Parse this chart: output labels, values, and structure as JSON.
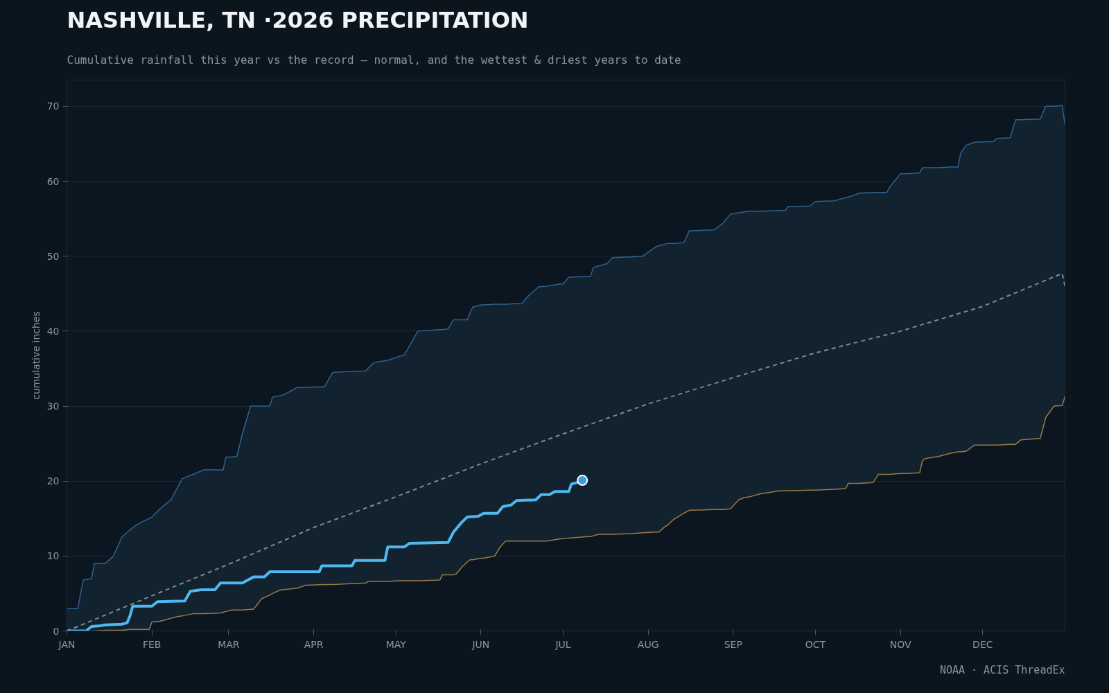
{
  "chart_data": {
    "type": "line",
    "title": "NASHVILLE, TN ·2026 PRECIPITATION",
    "subtitle": "Cumulative rainfall this year vs the record — normal, and the wettest & driest years to date",
    "ylabel": "cumulative inches",
    "annotations": [
      "NOAA · ACIS ThreadEx"
    ],
    "xlim": [
      "2026-01-01",
      "2026-12-31"
    ],
    "xticks": [
      {
        "value": "2026-01-01",
        "label": "JAN"
      },
      {
        "value": "2026-02-01",
        "label": "FEB"
      },
      {
        "value": "2026-03-01",
        "label": "MAR"
      },
      {
        "value": "2026-04-01",
        "label": "APR"
      },
      {
        "value": "2026-05-01",
        "label": "MAY"
      },
      {
        "value": "2026-06-01",
        "label": "JUN"
      },
      {
        "value": "2026-07-01",
        "label": "JUL"
      },
      {
        "value": "2026-08-01",
        "label": "AUG"
      },
      {
        "value": "2026-09-01",
        "label": "SEP"
      },
      {
        "value": "2026-10-01",
        "label": "OCT"
      },
      {
        "value": "2026-11-01",
        "label": "NOV"
      },
      {
        "value": "2026-12-01",
        "label": "DEC"
      }
    ],
    "ylim": [
      0,
      73.5
    ],
    "yticks": [
      0,
      10,
      20,
      30,
      40,
      50,
      60,
      70
    ],
    "grid": "y",
    "series": [
      {
        "color": "#2f6290",
        "x": [
          "2026-01-01",
          "2026-01-05",
          "2026-01-06",
          "2026-01-07",
          "2026-01-10",
          "2026-01-11",
          "2026-01-15",
          "2026-01-18",
          "2026-01-21",
          "2026-01-24",
          "2026-01-27",
          "2026-01-31",
          "2026-02-01",
          "2026-02-04",
          "2026-02-06",
          "2026-02-08",
          "2026-02-10",
          "2026-02-12",
          "2026-02-16",
          "2026-02-20",
          "2026-02-26",
          "2026-02-27",
          "2026-02-28",
          "2026-03-02",
          "2026-03-04",
          "2026-03-06",
          "2026-03-09",
          "2026-03-10",
          "2026-03-11",
          "2026-03-13",
          "2026-03-16",
          "2026-03-17",
          "2026-03-20",
          "2026-03-21",
          "2026-03-26",
          "2026-03-29",
          "2026-04-05",
          "2026-04-07",
          "2026-04-08",
          "2026-04-20",
          "2026-04-21",
          "2026-04-23",
          "2026-04-28",
          "2026-05-02",
          "2026-05-04",
          "2026-05-09",
          "2026-05-17",
          "2026-05-18",
          "2026-05-20",
          "2026-05-22",
          "2026-05-23",
          "2026-05-25",
          "2026-05-27",
          "2026-05-28",
          "2026-05-29",
          "2026-06-01",
          "2026-06-02",
          "2026-06-06",
          "2026-06-08",
          "2026-06-10",
          "2026-06-16",
          "2026-06-18",
          "2026-06-22",
          "2026-06-25",
          "2026-06-30",
          "2026-07-01",
          "2026-07-03",
          "2026-07-10",
          "2026-07-11",
          "2026-07-12",
          "2026-07-14",
          "2026-07-17",
          "2026-07-19",
          "2026-07-26",
          "2026-07-30",
          "2026-08-04",
          "2026-08-05",
          "2026-08-07",
          "2026-08-08",
          "2026-08-10",
          "2026-08-14",
          "2026-08-16",
          "2026-08-25",
          "2026-08-28",
          "2026-08-31",
          "2026-09-03",
          "2026-09-05",
          "2026-09-07",
          "2026-09-11",
          "2026-09-18",
          "2026-09-20",
          "2026-09-21",
          "2026-09-29",
          "2026-10-01",
          "2026-10-08",
          "2026-10-12",
          "2026-10-13",
          "2026-10-14",
          "2026-10-17",
          "2026-10-22",
          "2026-10-24",
          "2026-10-27",
          "2026-10-28",
          "2026-11-01",
          "2026-11-03",
          "2026-11-08",
          "2026-11-09",
          "2026-11-10",
          "2026-11-15",
          "2026-11-19",
          "2026-11-22",
          "2026-11-23",
          "2026-11-25",
          "2026-11-28",
          "2026-12-05",
          "2026-12-06",
          "2026-12-11",
          "2026-12-13",
          "2026-12-15",
          "2026-12-22",
          "2026-12-24",
          "2026-12-27",
          "2026-12-30",
          "2026-12-31"
        ],
        "values": [
          3.0,
          3.0,
          5.0,
          6.8,
          7.0,
          9.0,
          9.0,
          10.0,
          12.5,
          13.5,
          14.3,
          15.0,
          15.2,
          16.3,
          16.9,
          17.5,
          18.9,
          20.3,
          20.9,
          21.5,
          21.5,
          21.5,
          23.2,
          23.2,
          23.3,
          26.3,
          30.0,
          30.0,
          30.0,
          30.0,
          30.0,
          31.2,
          31.4,
          31.5,
          32.5,
          32.5,
          32.6,
          33.9,
          34.5,
          34.7,
          35.1,
          35.8,
          36.1,
          36.6,
          36.8,
          40.0,
          40.2,
          40.2,
          40.3,
          41.5,
          41.5,
          41.5,
          41.5,
          42.4,
          43.2,
          43.5,
          43.5,
          43.6,
          43.6,
          43.6,
          43.7,
          44.6,
          45.9,
          46.0,
          46.3,
          46.3,
          47.2,
          47.3,
          47.3,
          48.5,
          48.7,
          49.0,
          49.8,
          49.9,
          50.0,
          51.3,
          51.4,
          51.6,
          51.7,
          51.7,
          51.8,
          53.4,
          53.5,
          54.3,
          55.6,
          55.8,
          55.9,
          56.0,
          56.0,
          56.1,
          56.1,
          56.6,
          56.7,
          57.3,
          57.4,
          57.8,
          57.9,
          58.0,
          58.4,
          58.5,
          58.5,
          58.5,
          59.2,
          61.0,
          61.0,
          61.1,
          61.8,
          61.8,
          61.8,
          61.9,
          61.9,
          63.8,
          64.8,
          65.2,
          65.3,
          65.7,
          65.8,
          68.2,
          68.2,
          68.3,
          70.0,
          70.0,
          70.1,
          67.5
        ],
        "upper": [
          3.0,
          3.0,
          5.0,
          6.8,
          7.0,
          9.0,
          9.0,
          10.0,
          12.5,
          13.5,
          14.3,
          15.0,
          15.2,
          16.3,
          16.9,
          17.5,
          18.9,
          20.3,
          20.9,
          21.5,
          21.5,
          21.5,
          23.2,
          23.2,
          23.3,
          26.3,
          30.0,
          30.0,
          30.0,
          30.0,
          30.0,
          31.2,
          31.4,
          31.5,
          32.5,
          32.5,
          32.6,
          33.9,
          34.5,
          34.7,
          35.1,
          35.8,
          36.1,
          36.6,
          36.8,
          40.0,
          40.2,
          40.2,
          40.3,
          41.5,
          41.5,
          41.5,
          41.5,
          42.4,
          43.2,
          43.5,
          43.5,
          43.6,
          43.6,
          43.6,
          43.7,
          44.6,
          45.9,
          46.0,
          46.3,
          46.3,
          47.2,
          47.3,
          47.3,
          48.5,
          48.7,
          49.0,
          49.8,
          49.9,
          50.0,
          51.3,
          51.4,
          51.6,
          51.7,
          51.7,
          51.8,
          53.4,
          53.5,
          54.3,
          55.6,
          55.8,
          55.9,
          56.0,
          56.0,
          56.1,
          56.1,
          56.6,
          56.7,
          57.3,
          57.4,
          57.8,
          57.9,
          58.0,
          58.4,
          58.5,
          58.5,
          58.5,
          59.2,
          61.0,
          61.0,
          61.1,
          61.8,
          61.8,
          61.8,
          61.9,
          61.9,
          63.8,
          64.8,
          65.2,
          65.3,
          65.7,
          65.8,
          68.2,
          68.2,
          68.3,
          70.0,
          70.0,
          70.1,
          67.5
        ],
        "lower": [
          0,
          0,
          0,
          0,
          0,
          0,
          0.1,
          0.1,
          0.1,
          0.2,
          0.2,
          0.2,
          1.2,
          1.3,
          1.5,
          1.7,
          1.9,
          2.0,
          2.3,
          2.3,
          2.4,
          2.5,
          2.6,
          2.8,
          2.8,
          2.8,
          2.9,
          2.9,
          3.3,
          4.3,
          4.8,
          5.0,
          5.5,
          5.5,
          5.7,
          6.1,
          6.2,
          6.2,
          6.2,
          6.4,
          6.6,
          6.6,
          6.6,
          6.7,
          6.7,
          6.7,
          6.8,
          7.5,
          7.5,
          7.5,
          7.6,
          8.5,
          9.2,
          9.5,
          9.5,
          9.7,
          9.7,
          10.0,
          11.2,
          12.0,
          12.0,
          12.0,
          12.0,
          12.0,
          12.3,
          12.3,
          12.4,
          12.6,
          12.6,
          12.7,
          12.9,
          12.9,
          12.9,
          13.0,
          13.1,
          13.2,
          13.2,
          13.9,
          14.1,
          14.8,
          15.7,
          16.1,
          16.2,
          16.2,
          16.3,
          17.5,
          17.8,
          17.9,
          18.3,
          18.7,
          18.7,
          18.7,
          18.8,
          18.8,
          18.9,
          19.0,
          19.7,
          19.7,
          19.7,
          19.8,
          20.9,
          20.9,
          20.9,
          21.0,
          21.0,
          21.1,
          22.7,
          23.0,
          23.3,
          23.7,
          23.9,
          23.9,
          24.0,
          24.8,
          24.8,
          24.8,
          24.9,
          24.9,
          25.5,
          25.7,
          28.5,
          30.0,
          30.1,
          31.3
        ]
      },
      {
        "color": "#9a7b47",
        "x": [
          "2026-01-10",
          "2026-01-11",
          "2026-01-15",
          "2026-01-18",
          "2026-01-21",
          "2026-01-24",
          "2026-01-27",
          "2026-01-31",
          "2026-02-01",
          "2026-02-04",
          "2026-02-06",
          "2026-02-08",
          "2026-02-10",
          "2026-02-12",
          "2026-02-16",
          "2026-02-20",
          "2026-02-26",
          "2026-02-27",
          "2026-02-28",
          "2026-03-02",
          "2026-03-04",
          "2026-03-06",
          "2026-03-09",
          "2026-03-10",
          "2026-03-11",
          "2026-03-13",
          "2026-03-16",
          "2026-03-17",
          "2026-03-20",
          "2026-03-21",
          "2026-03-26",
          "2026-03-29",
          "2026-04-05",
          "2026-04-07",
          "2026-04-08",
          "2026-04-20",
          "2026-04-21",
          "2026-04-23",
          "2026-04-28",
          "2026-05-02",
          "2026-05-04",
          "2026-05-09",
          "2026-05-17",
          "2026-05-18",
          "2026-05-20",
          "2026-05-22",
          "2026-05-23",
          "2026-05-25",
          "2026-05-27",
          "2026-05-28",
          "2026-05-29",
          "2026-06-01",
          "2026-06-02",
          "2026-06-06",
          "2026-06-08",
          "2026-06-10",
          "2026-06-16",
          "2026-06-18",
          "2026-06-22",
          "2026-06-25",
          "2026-06-30",
          "2026-07-01",
          "2026-07-03",
          "2026-07-10",
          "2026-07-11",
          "2026-07-12",
          "2026-07-14",
          "2026-07-17",
          "2026-07-19",
          "2026-07-26",
          "2026-07-30",
          "2026-08-04",
          "2026-08-05",
          "2026-08-07",
          "2026-08-08",
          "2026-08-10",
          "2026-08-14",
          "2026-08-16",
          "2026-08-25",
          "2026-08-28",
          "2026-08-31",
          "2026-09-03",
          "2026-09-05",
          "2026-09-07",
          "2026-09-11",
          "2026-09-18",
          "2026-09-20",
          "2026-09-21",
          "2026-09-29",
          "2026-10-01",
          "2026-10-08",
          "2026-10-12",
          "2026-10-13",
          "2026-10-14",
          "2026-10-17",
          "2026-10-22",
          "2026-10-24",
          "2026-10-27",
          "2026-10-28",
          "2026-11-01",
          "2026-11-03",
          "2026-11-08",
          "2026-11-09",
          "2026-11-10",
          "2026-11-15",
          "2026-11-19",
          "2026-11-22",
          "2026-11-23",
          "2026-11-25",
          "2026-11-28",
          "2026-12-05",
          "2026-12-06",
          "2026-12-11",
          "2026-12-13",
          "2026-12-15",
          "2026-12-22",
          "2026-12-24",
          "2026-12-27",
          "2026-12-30",
          "2026-12-31"
        ],
        "values": [
          0,
          0,
          0.1,
          0.1,
          0.1,
          0.2,
          0.2,
          0.2,
          1.2,
          1.3,
          1.5,
          1.7,
          1.9,
          2.0,
          2.3,
          2.3,
          2.4,
          2.5,
          2.6,
          2.8,
          2.8,
          2.8,
          2.9,
          2.9,
          3.3,
          4.3,
          4.8,
          5.0,
          5.5,
          5.5,
          5.7,
          6.1,
          6.2,
          6.2,
          6.2,
          6.4,
          6.6,
          6.6,
          6.6,
          6.7,
          6.7,
          6.7,
          6.8,
          7.5,
          7.5,
          7.5,
          7.6,
          8.5,
          9.2,
          9.5,
          9.5,
          9.7,
          9.7,
          10.0,
          11.2,
          12.0,
          12.0,
          12.0,
          12.0,
          12.0,
          12.3,
          12.3,
          12.4,
          12.6,
          12.6,
          12.7,
          12.9,
          12.9,
          12.9,
          13.0,
          13.1,
          13.2,
          13.2,
          13.9,
          14.1,
          14.8,
          15.7,
          16.1,
          16.2,
          16.2,
          16.3,
          17.5,
          17.8,
          17.9,
          18.3,
          18.7,
          18.7,
          18.7,
          18.8,
          18.8,
          18.9,
          19.0,
          19.7,
          19.7,
          19.7,
          19.8,
          20.9,
          20.9,
          20.9,
          21.0,
          21.0,
          21.1,
          22.7,
          23.0,
          23.3,
          23.7,
          23.9,
          23.9,
          24.0,
          24.8,
          24.8,
          24.8,
          24.9,
          24.9,
          25.5,
          25.7,
          28.5,
          30.0,
          30.1,
          31.3
        ]
      },
      {
        "color": "#7f8b97",
        "line_style": "dashed",
        "x": [
          "2026-01-01",
          "2026-02-01",
          "2026-03-01",
          "2026-04-01",
          "2026-05-01",
          "2026-06-01",
          "2026-07-01",
          "2026-08-01",
          "2026-09-01",
          "2026-10-01",
          "2026-11-01",
          "2026-12-01",
          "2026-12-30",
          "2026-12-31"
        ],
        "values": [
          0,
          4.7,
          8.9,
          13.8,
          17.9,
          22.3,
          26.3,
          30.3,
          33.8,
          37.1,
          40.0,
          43.3,
          47.7,
          46.0
        ]
      },
      {
        "color": "#4fb8f0",
        "x": [
          "2026-01-01",
          "2026-01-08",
          "2026-01-10",
          "2026-01-13",
          "2026-01-15",
          "2026-01-21",
          "2026-01-23",
          "2026-01-24",
          "2026-01-25",
          "2026-02-01",
          "2026-02-03",
          "2026-02-13",
          "2026-02-15",
          "2026-02-19",
          "2026-02-24",
          "2026-02-26",
          "2026-03-06",
          "2026-03-08",
          "2026-03-10",
          "2026-03-14",
          "2026-03-16",
          "2026-04-03",
          "2026-04-04",
          "2026-04-15",
          "2026-04-16",
          "2026-04-27",
          "2026-04-28",
          "2026-05-04",
          "2026-05-06",
          "2026-05-20",
          "2026-05-22",
          "2026-05-25",
          "2026-05-27",
          "2026-05-31",
          "2026-06-02",
          "2026-06-07",
          "2026-06-09",
          "2026-06-12",
          "2026-06-14",
          "2026-06-21",
          "2026-06-23",
          "2026-06-26",
          "2026-06-28",
          "2026-07-03",
          "2026-07-04",
          "2026-07-06",
          "2026-07-08"
        ],
        "values": [
          0,
          0,
          0.6,
          0.7,
          0.8,
          0.9,
          1.1,
          2.0,
          3.3,
          3.3,
          3.9,
          4.0,
          5.3,
          5.5,
          5.5,
          6.4,
          6.4,
          6.8,
          7.2,
          7.2,
          7.9,
          7.9,
          8.7,
          8.7,
          9.4,
          9.4,
          11.2,
          11.2,
          11.7,
          11.8,
          13.2,
          14.5,
          15.2,
          15.3,
          15.7,
          15.7,
          16.6,
          16.8,
          17.4,
          17.5,
          18.2,
          18.2,
          18.6,
          18.6,
          19.6,
          19.8,
          20.1
        ]
      },
      {
        "type": "scatter",
        "marker": "circle",
        "color": "#3a9fe0",
        "x": [
          "2026-07-08"
        ],
        "values": [
          20.1
        ]
      }
    ]
  }
}
